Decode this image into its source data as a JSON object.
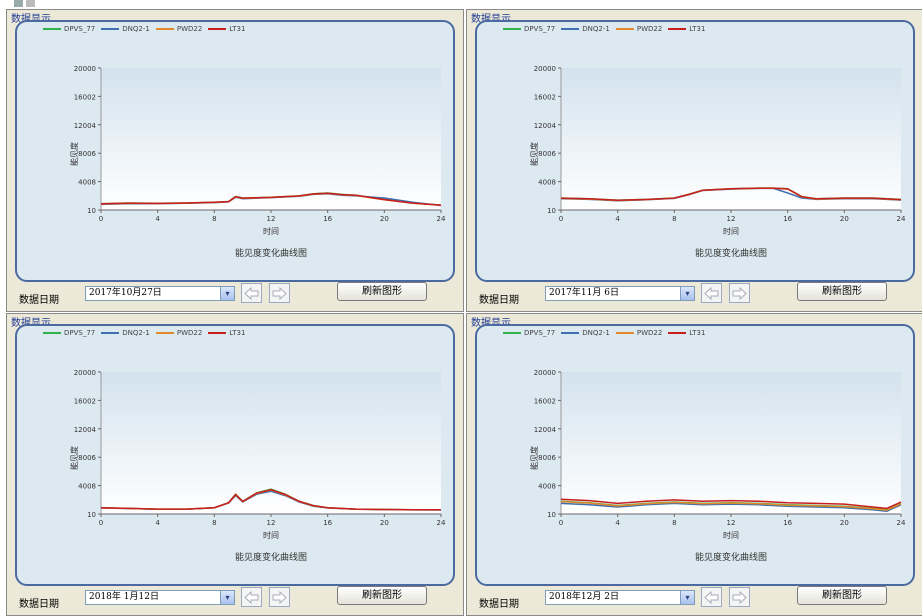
{
  "window": {
    "icon": "window-icon"
  },
  "legend": [
    {
      "name": "DPVS_77",
      "color": "#2db34a"
    },
    {
      "name": "DNQ2-1",
      "color": "#3f6fb0"
    },
    {
      "name": "PWD22",
      "color": "#e08a2a"
    },
    {
      "name": "LT31",
      "color": "#c81e1e"
    }
  ],
  "colors": {
    "frame_border": "#4a6aa0",
    "panel_bg": "#ece9d8"
  },
  "panels": [
    {
      "title": "数据显示",
      "footer_label": "数据日期",
      "date": "2017年10月27日",
      "refresh_label": "刷新图形",
      "chart_title": "能见度变化曲线图",
      "ylabel": "能见度",
      "xlabel": "时间"
    },
    {
      "title": "数据显示",
      "footer_label": "数据日期",
      "date": "2017年11月 6日",
      "refresh_label": "刷新图形",
      "chart_title": "能见度变化曲线图",
      "ylabel": "能见度",
      "xlabel": "时间"
    },
    {
      "title": "数据显示",
      "footer_label": "数据日期",
      "date": "2018年 1月12日",
      "refresh_label": "刷新图形",
      "chart_title": "能见度变化曲线图",
      "ylabel": "能见度",
      "xlabel": "时间"
    },
    {
      "title": "数据显示",
      "footer_label": "数据日期",
      "date": "2018年12月 2日",
      "refresh_label": "刷新图形",
      "chart_title": "能见度变化曲线图",
      "ylabel": "能见度",
      "xlabel": "时间"
    }
  ],
  "chart_data": [
    {
      "type": "line",
      "title": "能见度变化曲线图",
      "xlabel": "时间",
      "ylabel": "能见度",
      "xticks": [
        0,
        4,
        8,
        12,
        16,
        20,
        24
      ],
      "yticks": [
        10,
        4008,
        8006,
        12004,
        16002,
        20000
      ],
      "xlim": [
        0,
        24
      ],
      "ylim": [
        10,
        20000
      ],
      "legend": "top-left",
      "x": [
        0,
        2,
        4,
        6,
        8,
        9,
        9.5,
        10,
        12,
        14,
        15,
        16,
        17,
        18,
        20,
        22,
        24
      ],
      "series": [
        {
          "name": "DPVS_77",
          "values": [
            900,
            1000,
            950,
            1000,
            1100,
            1200,
            1900,
            1700,
            1800,
            2000,
            2300,
            2400,
            2200,
            2100,
            1500,
            1000,
            700
          ]
        },
        {
          "name": "DNQ2-1",
          "values": [
            800,
            900,
            900,
            950,
            1050,
            1150,
            1800,
            1600,
            1750,
            1950,
            2200,
            2300,
            2100,
            2000,
            1700,
            1100,
            650
          ]
        },
        {
          "name": "PWD22",
          "values": [
            850,
            950,
            920,
            980,
            1080,
            1180,
            1850,
            1650,
            1780,
            1980,
            2250,
            2350,
            2150,
            2050,
            1450,
            950,
            680
          ]
        },
        {
          "name": "LT31",
          "values": [
            880,
            980,
            940,
            990,
            1090,
            1190,
            1880,
            1680,
            1790,
            1990,
            2280,
            2380,
            2180,
            2080,
            1480,
            980,
            700
          ]
        }
      ]
    },
    {
      "type": "line",
      "title": "能见度变化曲线图",
      "xlabel": "时间",
      "ylabel": "能见度",
      "xticks": [
        0,
        4,
        8,
        12,
        16,
        20,
        24
      ],
      "yticks": [
        10,
        4008,
        8006,
        12004,
        16002,
        20000
      ],
      "xlim": [
        0,
        24
      ],
      "ylim": [
        10,
        20000
      ],
      "legend": "top-left",
      "x": [
        0,
        2,
        4,
        6,
        8,
        9,
        10,
        12,
        14,
        15,
        16,
        17,
        18,
        20,
        22,
        24
      ],
      "series": [
        {
          "name": "DPVS_77",
          "values": [
            1700,
            1600,
            1400,
            1500,
            1700,
            2200,
            2800,
            3000,
            3100,
            3100,
            3000,
            1900,
            1600,
            1700,
            1700,
            1500
          ]
        },
        {
          "name": "DNQ2-1",
          "values": [
            1600,
            1500,
            1300,
            1450,
            1650,
            2150,
            2750,
            2950,
            3050,
            3050,
            2400,
            1700,
            1500,
            1600,
            1600,
            1400
          ]
        },
        {
          "name": "PWD22",
          "values": [
            1650,
            1550,
            1350,
            1480,
            1680,
            2180,
            2780,
            2980,
            3080,
            3080,
            2950,
            1850,
            1550,
            1650,
            1650,
            1450
          ]
        },
        {
          "name": "LT31",
          "values": [
            1680,
            1580,
            1380,
            1490,
            1690,
            2190,
            2790,
            2990,
            3090,
            3090,
            2980,
            1880,
            1580,
            1680,
            1680,
            1480
          ]
        }
      ]
    },
    {
      "type": "line",
      "title": "能见度变化曲线图",
      "xlabel": "时间",
      "ylabel": "能见度",
      "xticks": [
        0,
        4,
        8,
        12,
        16,
        20,
        24
      ],
      "yticks": [
        10,
        4008,
        8006,
        12004,
        16002,
        20000
      ],
      "xlim": [
        0,
        24
      ],
      "ylim": [
        10,
        20000
      ],
      "legend": "top-left",
      "x": [
        0,
        2,
        4,
        6,
        8,
        9,
        9.5,
        10,
        11,
        12,
        13,
        14,
        15,
        16,
        18,
        20,
        22,
        24
      ],
      "series": [
        {
          "name": "DPVS_77",
          "values": [
            900,
            800,
            700,
            700,
            900,
            1600,
            2800,
            1800,
            3000,
            3500,
            2800,
            1800,
            1200,
            900,
            700,
            650,
            600,
            600
          ]
        },
        {
          "name": "DNQ2-1",
          "values": [
            850,
            780,
            680,
            690,
            880,
            1550,
            2600,
            1700,
            2800,
            3200,
            2600,
            1700,
            1100,
            850,
            680,
            640,
            590,
            580
          ]
        },
        {
          "name": "PWD22",
          "values": [
            880,
            790,
            690,
            700,
            890,
            1580,
            2700,
            1750,
            2900,
            3400,
            2700,
            1750,
            1150,
            880,
            690,
            650,
            600,
            590
          ]
        },
        {
          "name": "LT31",
          "values": [
            890,
            800,
            700,
            700,
            900,
            1590,
            2750,
            1780,
            2950,
            3450,
            2750,
            1780,
            1180,
            890,
            700,
            650,
            600,
            600
          ]
        }
      ]
    },
    {
      "type": "line",
      "title": "能见度变化曲线图",
      "xlabel": "时间",
      "ylabel": "能见度",
      "xticks": [
        0,
        4,
        8,
        12,
        16,
        20,
        24
      ],
      "yticks": [
        10,
        4008,
        8006,
        12004,
        16002,
        20000
      ],
      "xlim": [
        0,
        24
      ],
      "ylim": [
        10,
        20000
      ],
      "legend": "top-left",
      "x": [
        0,
        2,
        4,
        6,
        8,
        10,
        12,
        14,
        16,
        18,
        20,
        22,
        23,
        24
      ],
      "series": [
        {
          "name": "DPVS_77",
          "values": [
            1800,
            1600,
            1200,
            1500,
            1700,
            1500,
            1600,
            1500,
            1300,
            1200,
            1100,
            800,
            600,
            1500
          ]
        },
        {
          "name": "DNQ2-1",
          "values": [
            1500,
            1300,
            1000,
            1300,
            1500,
            1300,
            1400,
            1300,
            1100,
            1000,
            900,
            600,
            400,
            1300
          ]
        },
        {
          "name": "PWD22",
          "values": [
            1750,
            1550,
            1150,
            1450,
            1650,
            1450,
            1550,
            1450,
            1250,
            1150,
            1050,
            750,
            550,
            1450
          ]
        },
        {
          "name": "LT31",
          "values": [
            2100,
            1900,
            1500,
            1800,
            2000,
            1800,
            1900,
            1800,
            1600,
            1500,
            1400,
            1000,
            800,
            1700
          ]
        }
      ]
    }
  ]
}
